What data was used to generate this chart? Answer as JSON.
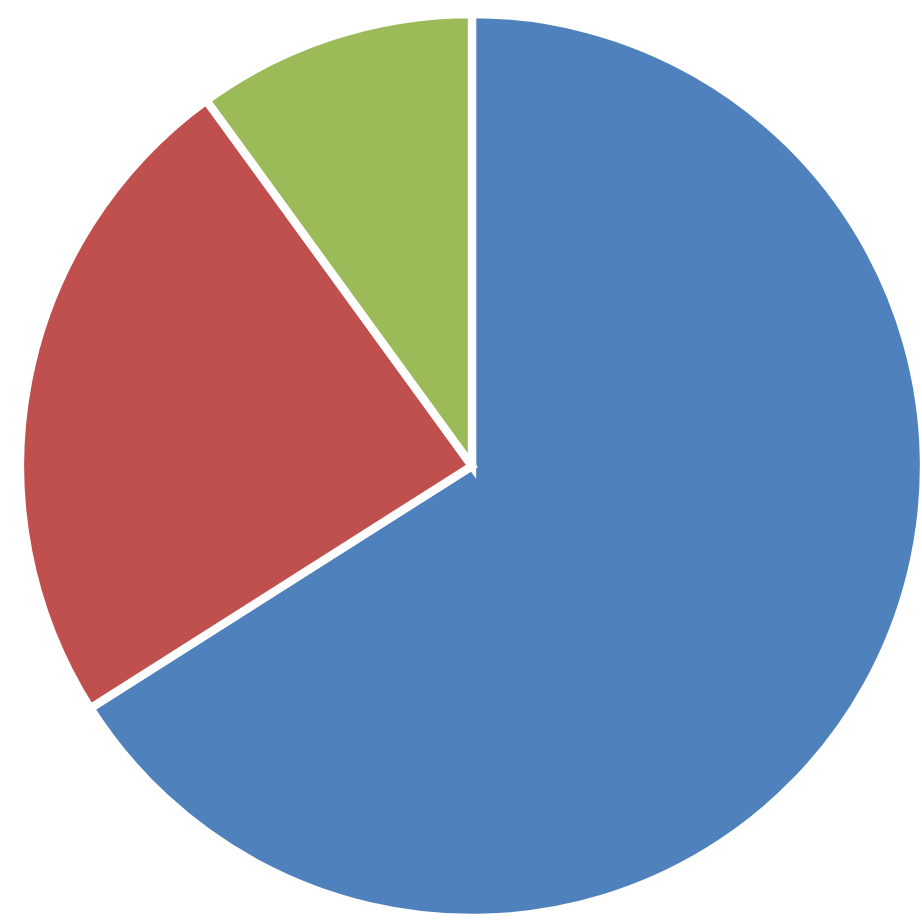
{
  "chart_data": {
    "type": "pie",
    "categories": [
      null,
      null,
      null
    ],
    "values": [
      66,
      24,
      10
    ],
    "colors": [
      "#4f81bd",
      "#c0504d",
      "#9bbb59"
    ]
  }
}
